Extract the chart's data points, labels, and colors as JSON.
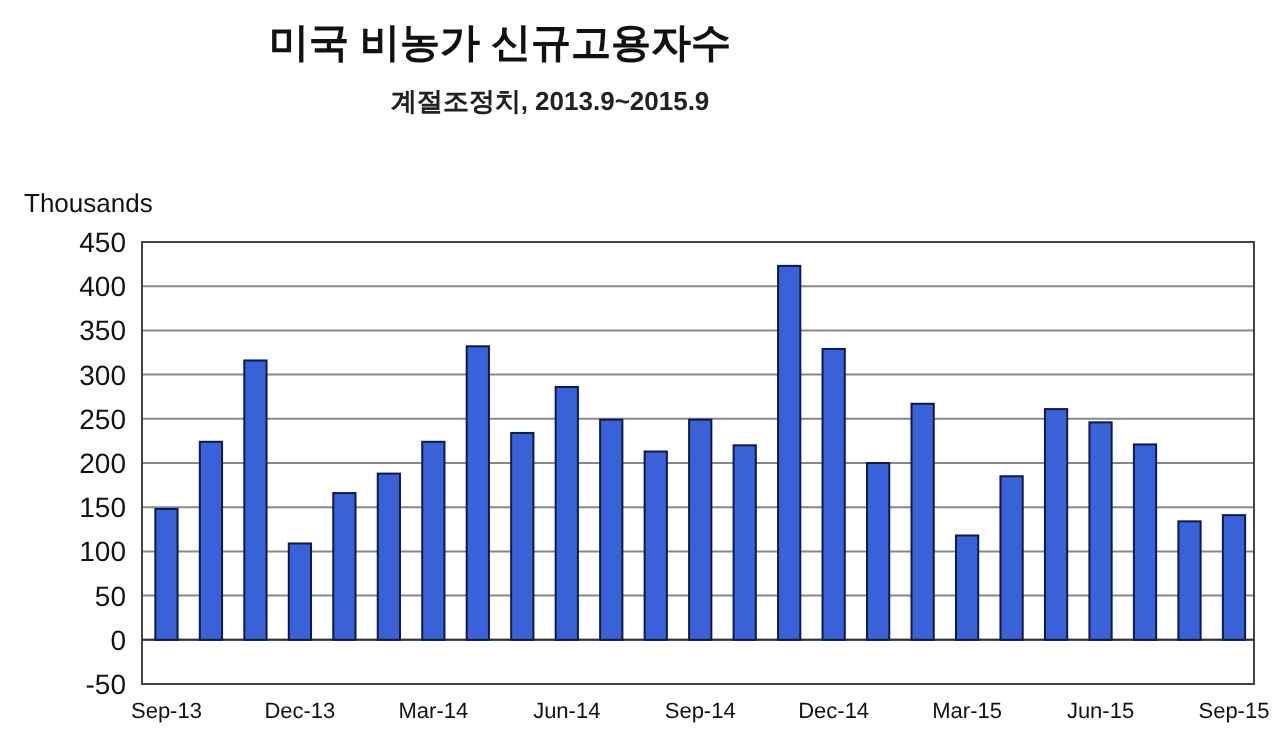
{
  "chart_data": {
    "type": "bar",
    "title": "미국 비농가 신규고용자수",
    "subtitle": "계절조정치, 2013.9~2015.9",
    "ylabel": "Thousands",
    "categories": [
      "Sep-13",
      null,
      null,
      "Dec-13",
      null,
      null,
      "Mar-14",
      null,
      null,
      "Jun-14",
      null,
      null,
      "Sep-14",
      null,
      null,
      "Dec-14",
      null,
      null,
      "Mar-15",
      null,
      null,
      "Jun-15",
      null,
      null,
      "Sep-15"
    ],
    "values": [
      148,
      224,
      316,
      109,
      166,
      188,
      224,
      332,
      234,
      286,
      249,
      213,
      249,
      220,
      423,
      329,
      200,
      267,
      118,
      185,
      261,
      246,
      221,
      134,
      141
    ],
    "color": "#3a62d8",
    "ylim": [
      -50,
      450
    ],
    "yticks": [
      -50,
      0,
      50,
      100,
      150,
      200,
      250,
      300,
      350,
      400,
      450
    ],
    "grid": "y"
  }
}
